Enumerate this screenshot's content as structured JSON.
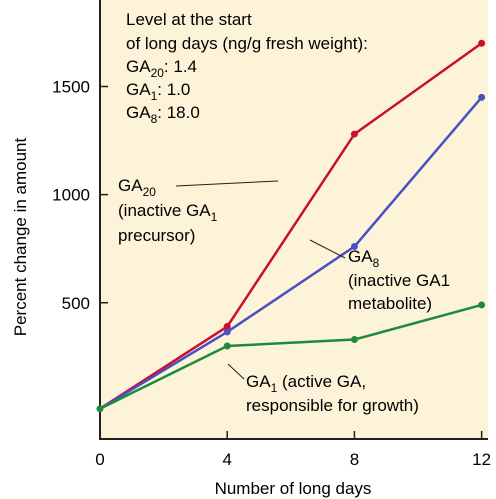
{
  "chart_data": {
    "type": "line",
    "xlabel": "Number of long days",
    "ylabel": "Percent change in amount",
    "x": [
      0,
      4,
      8,
      12
    ],
    "x_ticks": [
      "0",
      "4",
      "8",
      "12"
    ],
    "y_ticks": [
      "500",
      "1000",
      "1500"
    ],
    "xlim": [
      0,
      12.2
    ],
    "ylim": [
      -130,
      1900
    ],
    "grid": false,
    "series": [
      {
        "name": "GA20",
        "color": "#c8102e",
        "values": [
          10,
          390,
          1280,
          1700
        ]
      },
      {
        "name": "GA8",
        "color": "#4a4fc4",
        "values": [
          10,
          365,
          760,
          1450
        ]
      },
      {
        "name": "GA1",
        "color": "#1f8a3c",
        "values": [
          10,
          300,
          330,
          490
        ]
      }
    ],
    "note": {
      "line1": "Level at the start",
      "line2": "of long days (ng/g fresh weight):",
      "rows": [
        {
          "main": "GA",
          "sub": "20",
          "value": ":  1.4"
        },
        {
          "main": "GA",
          "sub": "1",
          "value": ":   1.0"
        },
        {
          "main": "GA",
          "sub": "8",
          "value": ": 18.0"
        }
      ]
    },
    "annotations": {
      "ga20": {
        "main": "GA",
        "sub": "20",
        "line2": "(inactive GA",
        "line2_sub": "1",
        "line3": "precursor)"
      },
      "ga8": {
        "main": "GA",
        "sub": "8",
        "line2": "(inactive GA1",
        "line3": "metabolite)"
      },
      "ga1": {
        "main": "GA",
        "sub": "1",
        "line1_rest": " (active GA,",
        "line2": "responsible for growth)"
      }
    }
  }
}
